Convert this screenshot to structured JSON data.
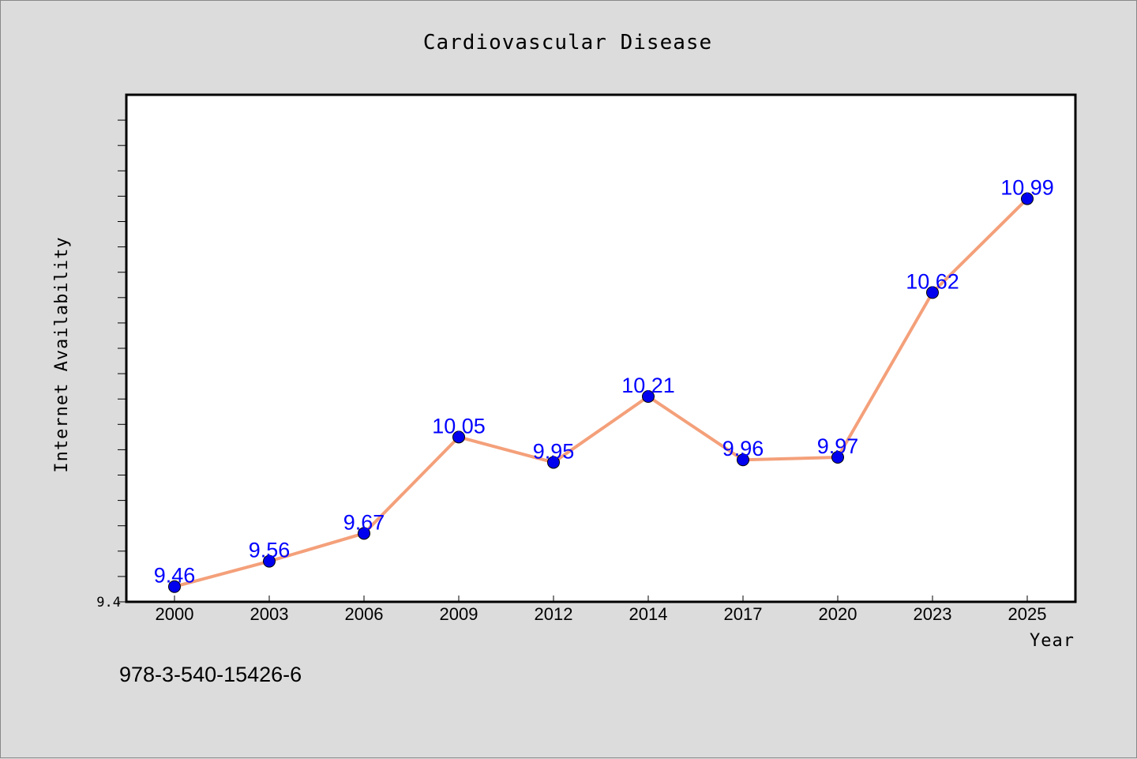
{
  "chart_data": {
    "type": "line",
    "title": "Cardiovascular Disease",
    "xlabel": "Year",
    "ylabel": "Internet Availability",
    "categories": [
      "2000",
      "2003",
      "2006",
      "2009",
      "2012",
      "2014",
      "2017",
      "2020",
      "2023",
      "2025"
    ],
    "series": [
      {
        "values": [
          9.46,
          9.56,
          9.67,
          10.05,
          9.95,
          10.21,
          9.96,
          9.97,
          10.62,
          10.99
        ],
        "line_color": "#f4a07a",
        "marker_color": "#0000ee"
      }
    ],
    "data_labels": [
      "9.46",
      "9.56",
      "9.67",
      "10.05",
      "9.95",
      "10.21",
      "9.96",
      "9.97",
      "10.62",
      "10.99"
    ],
    "y_tick_labels": [
      "9.4"
    ],
    "ylim": [
      9.4,
      11.4
    ],
    "grid": false,
    "legend": "none",
    "data_label_color": "#0000ff"
  },
  "footer": {
    "code": "978-3-540-15426-6"
  }
}
